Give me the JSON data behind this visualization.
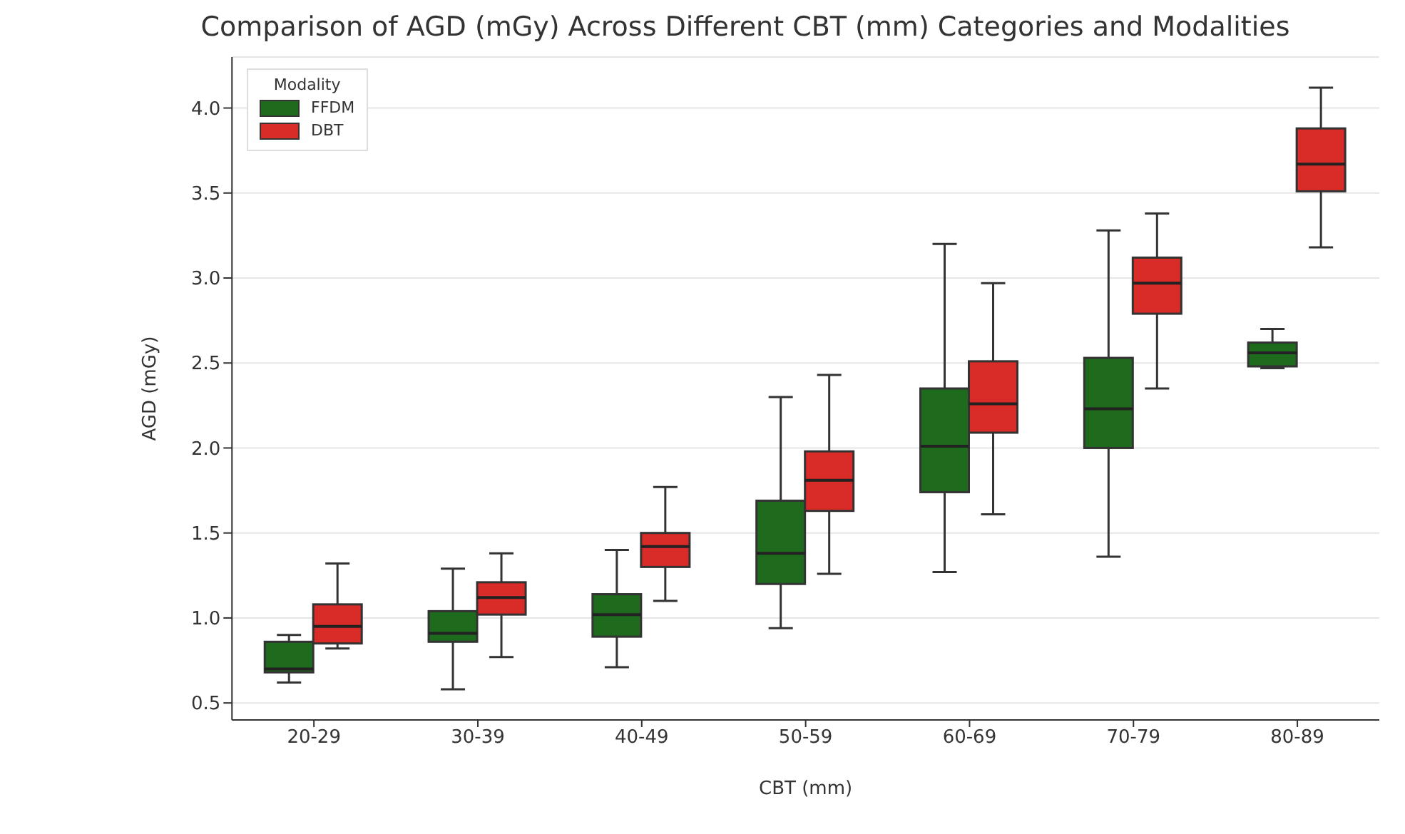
{
  "chart_data": {
    "type": "box",
    "title": "Comparison of AGD (mGy) Across Different CBT (mm) Categories and Modalities",
    "xlabel": "CBT (mm)",
    "ylabel": "AGD (mGy)",
    "legend_title": "Modality",
    "legend": "top left",
    "grid": "y",
    "categories": [
      "20-29",
      "30-39",
      "40-49",
      "50-59",
      "60-69",
      "70-79",
      "80-89"
    ],
    "ylim": [
      0.4,
      4.3
    ],
    "yticks": [
      0.5,
      {
        "value": 1,
        "label": "1.0"
      },
      1.5,
      {
        "value": 2,
        "label": "2.0"
      },
      2.5,
      {
        "value": 3,
        "label": "3.0"
      },
      3.5,
      {
        "value": 4,
        "label": "4.0"
      }
    ],
    "series": [
      {
        "name": "FFDM",
        "color": "#1e6b1e",
        "boxes": [
          {
            "low": 0.62,
            "q1": 0.68,
            "median": 0.7,
            "q3": 0.86,
            "high": 0.9
          },
          {
            "low": 0.58,
            "q1": 0.86,
            "median": 0.91,
            "q3": 1.04,
            "high": 1.29
          },
          {
            "low": 0.71,
            "q1": 0.89,
            "median": 1.02,
            "q3": 1.14,
            "high": 1.4
          },
          {
            "low": 0.94,
            "q1": 1.2,
            "median": 1.38,
            "q3": 1.69,
            "high": 2.3
          },
          {
            "low": 1.27,
            "q1": 1.74,
            "median": 2.01,
            "q3": 2.35,
            "high": 3.2
          },
          {
            "low": 1.36,
            "q1": 2.0,
            "median": 2.23,
            "q3": 2.53,
            "high": 3.28
          },
          {
            "low": 2.47,
            "q1": 2.48,
            "median": 2.56,
            "q3": 2.62,
            "high": 2.7
          }
        ]
      },
      {
        "name": "DBT",
        "color": "#d92b27",
        "boxes": [
          {
            "low": 0.82,
            "q1": 0.85,
            "median": 0.95,
            "q3": 1.08,
            "high": 1.32
          },
          {
            "low": 0.77,
            "q1": 1.02,
            "median": 1.12,
            "q3": 1.21,
            "high": 1.38
          },
          {
            "low": 1.1,
            "q1": 1.3,
            "median": 1.42,
            "q3": 1.5,
            "high": 1.77
          },
          {
            "low": 1.26,
            "q1": 1.63,
            "median": 1.81,
            "q3": 1.98,
            "high": 2.43
          },
          {
            "low": 1.61,
            "q1": 2.09,
            "median": 2.26,
            "q3": 2.51,
            "high": 2.97
          },
          {
            "low": 2.35,
            "q1": 2.79,
            "median": 2.97,
            "q3": 3.12,
            "high": 3.38
          },
          {
            "low": 3.18,
            "q1": 3.51,
            "median": 3.67,
            "q3": 3.88,
            "high": 4.12
          }
        ]
      }
    ]
  }
}
